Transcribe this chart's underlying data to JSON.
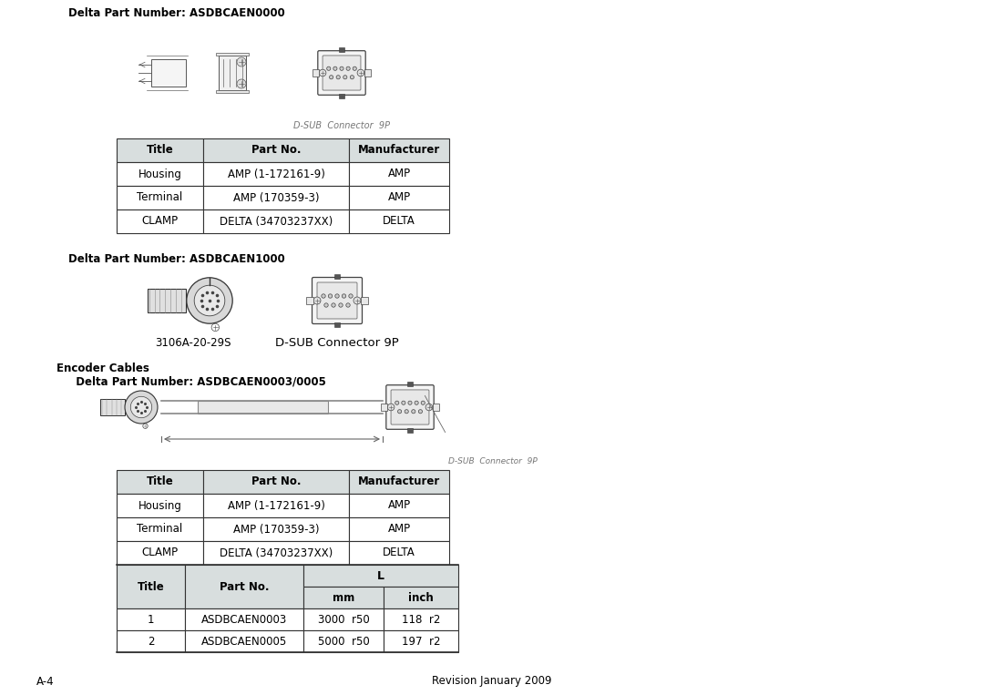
{
  "bg_color": "#ffffff",
  "text_color": "#000000",
  "header_bg": "#d8dede",
  "table_border_color": "#333333",
  "section1_label": "Delta Part Number: ASDBCAEN0000",
  "section2_label": "Delta Part Number: ASDBCAEN1000",
  "section3_label": "Encoder Cables",
  "section4_label": "  Delta Part Number: ASDBCAEN0003/0005",
  "dsub_label1": "D-SUB  Connector  9P",
  "dsub_label2": "D-SUB Connector 9P",
  "connector_label": "3106A-20-29S",
  "dsub_cable_label": "D-SUB  Connector  9P",
  "table1_headers": [
    "Title",
    "Part No.",
    "Manufacturer"
  ],
  "table1_rows": [
    [
      "Housing",
      "AMP (1-172161-9)",
      "AMP"
    ],
    [
      "Terminal",
      "AMP (170359-3)",
      "AMP"
    ],
    [
      "CLAMP",
      "DELTA (34703237XX)",
      "DELTA"
    ]
  ],
  "table2_headers": [
    "Title",
    "Part No.",
    "Manufacturer"
  ],
  "table2_rows": [
    [
      "Housing",
      "AMP (1-172161-9)",
      "AMP"
    ],
    [
      "Terminal",
      "AMP (170359-3)",
      "AMP"
    ],
    [
      "CLAMP",
      "DELTA (34703237XX)",
      "DELTA"
    ]
  ],
  "table3_rows": [
    [
      "1",
      "ASDBCAEN0003",
      "3000  r50",
      "118  r2"
    ],
    [
      "2",
      "ASDBCAEN0005",
      "5000  r50",
      "197  r2"
    ]
  ],
  "footer_left": "A-4",
  "footer_center": "Revision January 2009"
}
